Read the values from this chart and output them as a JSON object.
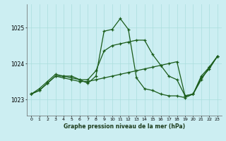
{
  "title": "Graphe pression niveau de la mer (hPa)",
  "bg_color": "#cceef2",
  "grid_color": "#aadddd",
  "line_color": "#1a5c1a",
  "xlim": [
    -0.5,
    23.5
  ],
  "ylim": [
    1022.55,
    1025.65
  ],
  "yticks": [
    1023,
    1024,
    1025
  ],
  "xticks": [
    0,
    1,
    2,
    3,
    4,
    5,
    6,
    7,
    8,
    9,
    10,
    11,
    12,
    13,
    14,
    15,
    16,
    17,
    18,
    19,
    20,
    21,
    22,
    23
  ],
  "line1": [
    1023.15,
    1023.25,
    1023.45,
    1023.65,
    1023.65,
    1023.65,
    1023.55,
    1023.45,
    1023.65,
    1024.9,
    1024.95,
    1025.25,
    1024.95,
    1023.6,
    1023.3,
    1023.25,
    1023.15,
    1023.1,
    1023.1,
    1023.05,
    1023.15,
    1023.55,
    1023.9,
    1024.2
  ],
  "line2": [
    1023.15,
    1023.3,
    1023.5,
    1023.7,
    1023.65,
    1023.6,
    1023.55,
    1023.55,
    1023.8,
    1024.35,
    1024.5,
    1024.55,
    1024.6,
    1024.65,
    1024.65,
    1024.25,
    1023.95,
    1023.65,
    1023.55,
    1023.1,
    1023.15,
    1023.65,
    1023.9,
    1024.2
  ],
  "line3": [
    1023.15,
    1023.25,
    1023.45,
    1023.65,
    1023.6,
    1023.55,
    1023.5,
    1023.5,
    1023.55,
    1023.6,
    1023.65,
    1023.7,
    1023.75,
    1023.8,
    1023.85,
    1023.9,
    1023.95,
    1024.0,
    1024.05,
    1023.1,
    1023.15,
    1023.6,
    1023.85,
    1024.2
  ]
}
